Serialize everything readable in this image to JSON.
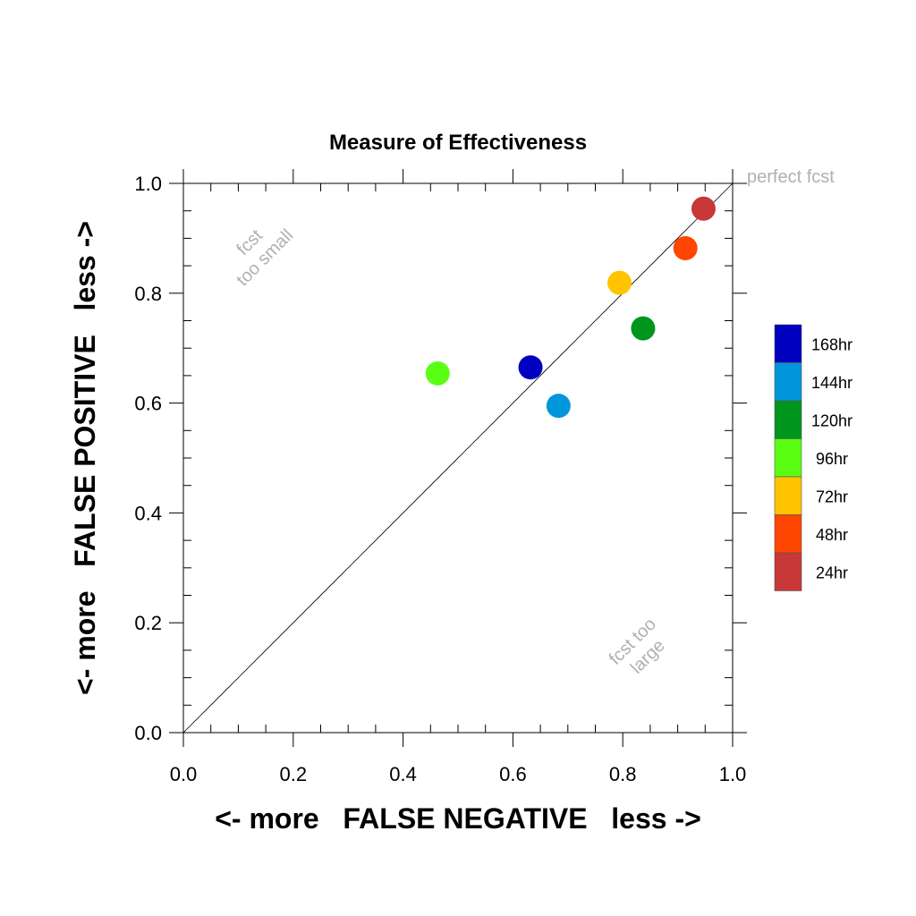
{
  "chart_data": {
    "type": "scatter",
    "title": "Measure of Effectiveness",
    "xlabel": "<- more   FALSE NEGATIVE   less ->",
    "ylabel": "<- more   FALSE POSITIVE   less ->",
    "xlim": [
      0,
      1
    ],
    "ylim": [
      0,
      1
    ],
    "xticks": [
      "0.0",
      "0.2",
      "0.4",
      "0.6",
      "0.8",
      "1.0"
    ],
    "yticks": [
      "0.0",
      "0.2",
      "0.4",
      "0.6",
      "0.8",
      "1.0"
    ],
    "grid": false,
    "legend_position": "right",
    "reference_line": "diagonal y = x",
    "annotations": {
      "perfect": "perfect fcst",
      "too_small": [
        "fcst",
        "too small"
      ],
      "too_large": [
        "fcst too",
        "large"
      ]
    },
    "series": [
      {
        "name": "168hr",
        "color": "#0000c0",
        "x": 0.632,
        "y": 0.665
      },
      {
        "name": "144hr",
        "color": "#0096dc",
        "x": 0.683,
        "y": 0.595
      },
      {
        "name": "120hr",
        "color": "#00961e",
        "x": 0.837,
        "y": 0.736
      },
      {
        "name": "96hr",
        "color": "#5aff14",
        "x": 0.463,
        "y": 0.654
      },
      {
        "name": "72hr",
        "color": "#ffc300",
        "x": 0.794,
        "y": 0.819
      },
      {
        "name": "48hr",
        "color": "#ff4600",
        "x": 0.914,
        "y": 0.882
      },
      {
        "name": "24hr",
        "color": "#c83737",
        "x": 0.947,
        "y": 0.954
      }
    ]
  }
}
